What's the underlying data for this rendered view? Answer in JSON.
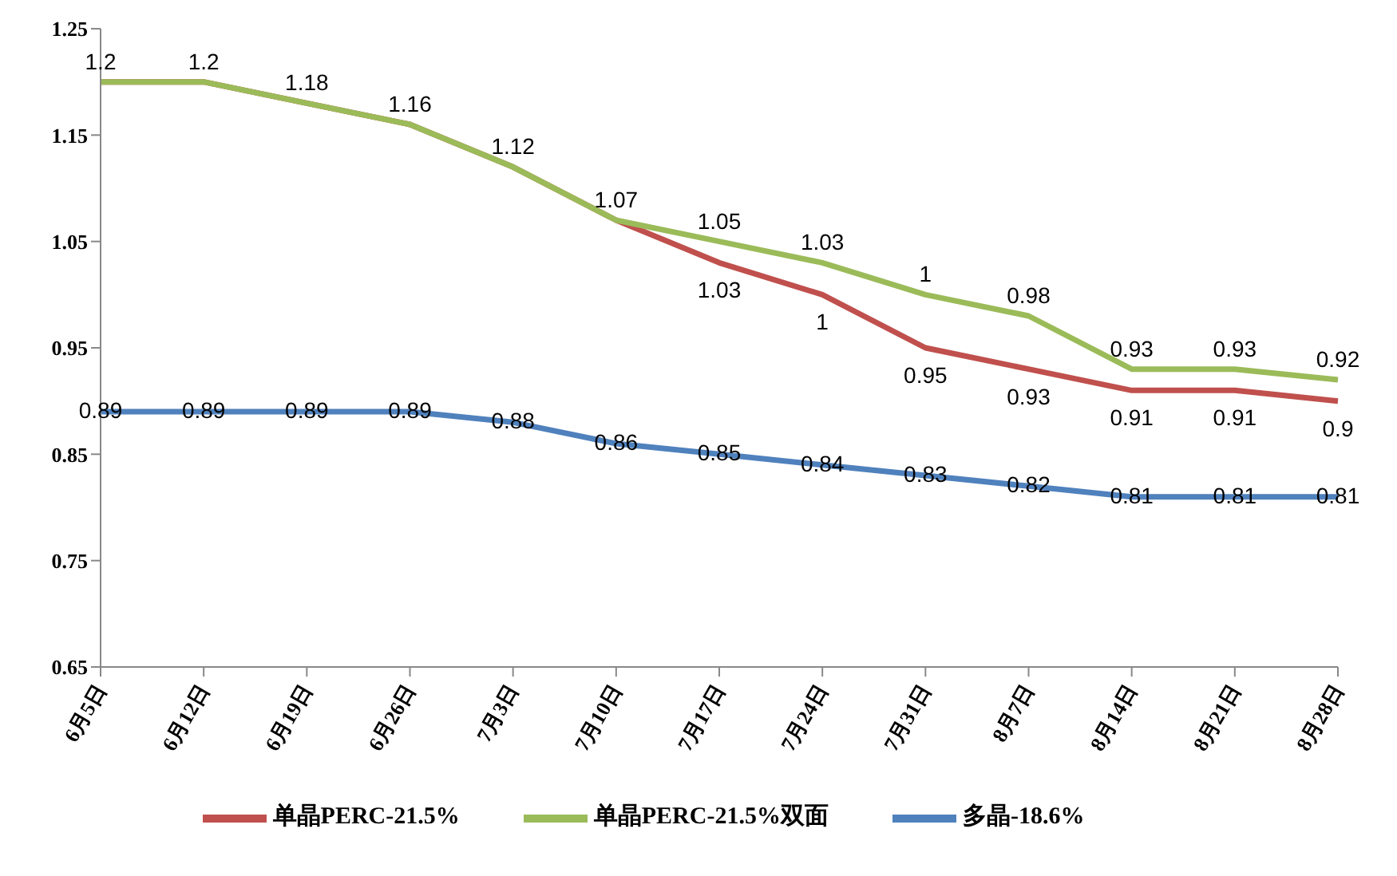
{
  "chart_data": {
    "type": "line",
    "categories": [
      "6月5日",
      "6月12日",
      "6月19日",
      "6月26日",
      "7月3日",
      "7月10日",
      "7月17日",
      "7月24日",
      "7月31日",
      "8月7日",
      "8月14日",
      "8月21日",
      "8月28日"
    ],
    "series": [
      {
        "name": "多晶-18.6%",
        "color": "#4f81bd",
        "values": [
          0.89,
          0.89,
          0.89,
          0.89,
          0.88,
          0.86,
          0.85,
          0.84,
          0.83,
          0.82,
          0.81,
          0.81,
          0.81
        ],
        "value_labels": [
          "0.89",
          "0.89",
          "0.89",
          "0.89",
          "0.88",
          "0.86",
          "0.85",
          "0.84",
          "0.83",
          "0.82",
          "0.81",
          "0.81",
          "0.81"
        ]
      },
      {
        "name": "单晶PERC-21.5%",
        "color": "#c0504d",
        "values": [
          1.2,
          1.2,
          1.18,
          1.16,
          1.12,
          1.07,
          1.03,
          1,
          0.95,
          0.93,
          0.91,
          0.91,
          0.9
        ],
        "value_labels": [
          null,
          null,
          null,
          null,
          null,
          null,
          "1.03",
          "1",
          "0.95",
          "0.93",
          "0.91",
          "0.91",
          "0.9"
        ]
      },
      {
        "name": "单晶PERC-21.5%双面",
        "color": "#9bbb59",
        "values": [
          1.2,
          1.2,
          1.18,
          1.16,
          1.12,
          1.07,
          1.05,
          1.03,
          1,
          0.98,
          0.93,
          0.93,
          0.92
        ],
        "value_labels": [
          "1.2",
          "1.2",
          "1.18",
          "1.16",
          "1.12",
          "1.07",
          "1.05",
          "1.03",
          "1",
          "0.98",
          "0.93",
          "0.93",
          "0.92"
        ]
      }
    ],
    "ylim": [
      0.65,
      1.25
    ],
    "yticks": [
      0.65,
      0.75,
      0.85,
      0.95,
      1.05,
      1.15,
      1.25
    ],
    "grid": false,
    "legend": "bottom",
    "marker": "none",
    "line_style": "solid"
  }
}
